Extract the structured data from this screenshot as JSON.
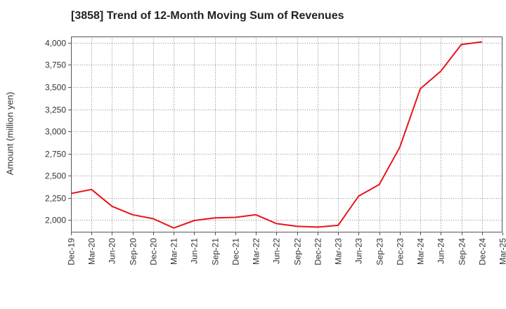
{
  "chart_data": {
    "type": "line",
    "title": "[3858]  Trend of 12-Month Moving Sum of Revenues",
    "xlabel": "",
    "ylabel": "Amount (million yen)",
    "ylim": [
      1860,
      4070
    ],
    "yticks": [
      2000,
      2250,
      2500,
      2750,
      3000,
      3250,
      3500,
      3750,
      4000
    ],
    "ytick_labels": [
      "2,000",
      "2,250",
      "2,500",
      "2,750",
      "3,000",
      "3,250",
      "3,500",
      "3,750",
      "4,000"
    ],
    "categories": [
      "Dec-19",
      "Mar-20",
      "Jun-20",
      "Sep-20",
      "Dec-20",
      "Mar-21",
      "Jun-21",
      "Sep-21",
      "Dec-21",
      "Mar-22",
      "Jun-22",
      "Sep-22",
      "Dec-22",
      "Mar-23",
      "Jun-23",
      "Sep-23",
      "Dec-23",
      "Mar-24",
      "Jun-24",
      "Sep-24",
      "Dec-24",
      "Mar-25"
    ],
    "series": [
      {
        "color": "#e8141c",
        "values": [
          2300,
          2345,
          2155,
          2060,
          2015,
          1910,
          1995,
          2025,
          2030,
          2060,
          1960,
          1930,
          1920,
          1940,
          2270,
          2400,
          2820,
          3480,
          3680,
          3980,
          4010,
          null
        ]
      }
    ],
    "grid": true,
    "grid_style": "dotted",
    "legend": "none"
  }
}
